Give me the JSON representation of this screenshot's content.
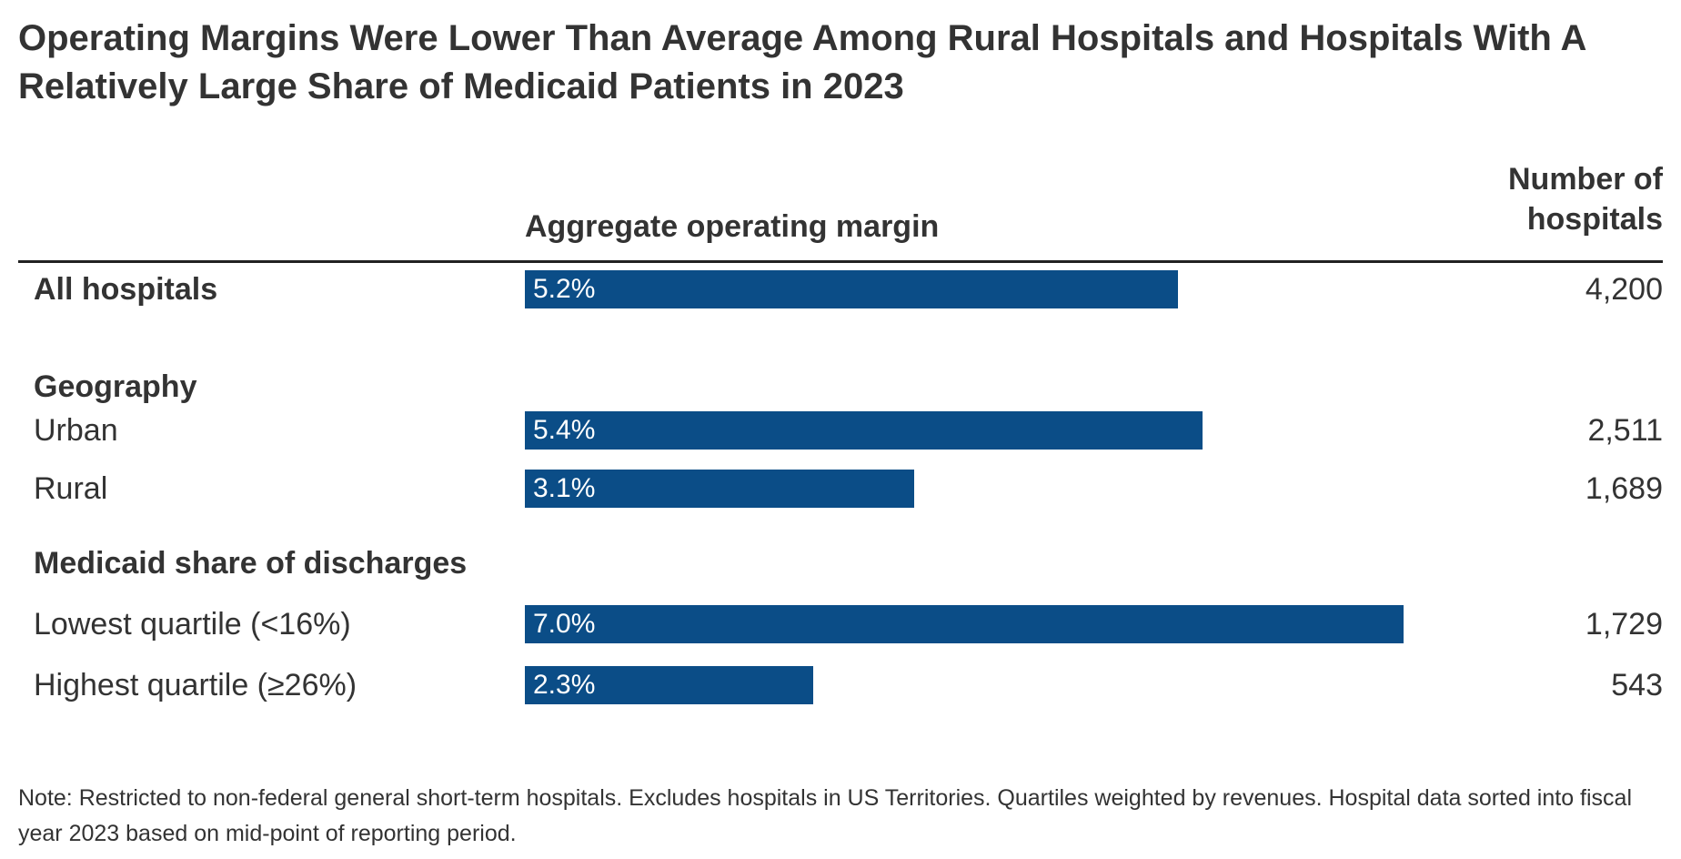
{
  "title": "Operating Margins Were Lower Than Average Among Rural Hospitals and Hospitals With A Relatively Large Share of Medicaid Patients in 2023",
  "columns": {
    "margin": "Aggregate operating margin",
    "hospitals": "Number of hospitals"
  },
  "note": "Note: Restricted to non-federal general short-term hospitals. Excludes hospitals in US Territories. Quartiles weighted by revenues. Hospital data sorted into fiscal year 2023 based on mid-point of reporting period.",
  "colors": {
    "bar": "#0b4d87",
    "text": "#333333",
    "rule": "#222222",
    "bar_label": "#ffffff"
  },
  "chart_data": {
    "type": "bar",
    "orientation": "horizontal",
    "title": "Operating Margins Were Lower Than Average Among Rural Hospitals and Hospitals With A Relatively Large Share of Medicaid Patients in 2023",
    "value_column_label": "Aggregate operating margin",
    "count_column_label": "Number of hospitals",
    "unit": "%",
    "axis": "none — values labeled directly on bars, implied scale 0 to ~9%",
    "categories": [
      "All hospitals",
      "Urban",
      "Rural",
      "Lowest quartile (<16%)",
      "Highest quartile (≥26%)"
    ],
    "values": [
      5.2,
      5.4,
      3.1,
      7.0,
      2.3
    ],
    "counts": [
      4200,
      2511,
      1689,
      1729,
      543
    ],
    "sections": [
      {
        "label": "Geography",
        "rows": [
          "Urban",
          "Rural"
        ]
      },
      {
        "label": "Medicaid share of discharges",
        "rows": [
          "Lowest quartile (<16%)",
          "Highest quartile (≥26%)"
        ]
      }
    ],
    "rows": [
      {
        "kind": "bar",
        "label": "All hospitals",
        "bold": true,
        "value": 5.2,
        "display": "5.2%",
        "count": "4,200"
      },
      {
        "kind": "section",
        "label": "Geography"
      },
      {
        "kind": "bar",
        "label": "Urban",
        "bold": false,
        "value": 5.4,
        "display": "5.4%",
        "count": "2,511"
      },
      {
        "kind": "bar",
        "label": "Rural",
        "bold": false,
        "value": 3.1,
        "display": "3.1%",
        "count": "1,689"
      },
      {
        "kind": "section",
        "label": "Medicaid share of discharges"
      },
      {
        "kind": "bar",
        "label": "Lowest quartile (<16%)",
        "bold": false,
        "value": 7.0,
        "display": "7.0%",
        "count": "1,729"
      },
      {
        "kind": "bar",
        "label": "Highest quartile (≥26%)",
        "bold": false,
        "value": 2.3,
        "display": "2.3%",
        "count": "543"
      }
    ]
  }
}
